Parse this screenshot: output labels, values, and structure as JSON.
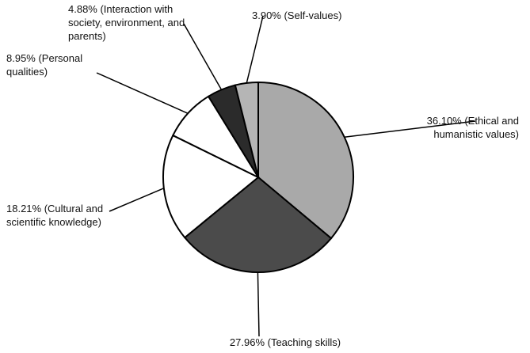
{
  "chart_data": {
    "type": "pie",
    "start_angle_deg": 90,
    "direction": "clockwise",
    "slices": [
      {
        "value": 36.1,
        "label_lines": [
          "36.10% (Ethical and",
          "humanistic values)"
        ],
        "color": "#a9a9a9"
      },
      {
        "value": 27.96,
        "label_lines": [
          "27.96% (Teaching skills)"
        ],
        "color": "#4b4b4b"
      },
      {
        "value": 18.21,
        "label_lines": [
          "18.21% (Cultural and",
          "scientific knowledge)"
        ],
        "color": "#ffffff"
      },
      {
        "value": 8.95,
        "label_lines": [
          "8.95% (Personal",
          "qualities)"
        ],
        "color": "#ffffff"
      },
      {
        "value": 4.88,
        "label_lines": [
          "4.88% (Interaction with",
          "society, environment, and",
          "parents)"
        ],
        "color": "#2b2b2b"
      },
      {
        "value": 3.9,
        "label_lines": [
          "3.90% (Self-values)"
        ],
        "color": "#b5b5b5"
      }
    ]
  }
}
